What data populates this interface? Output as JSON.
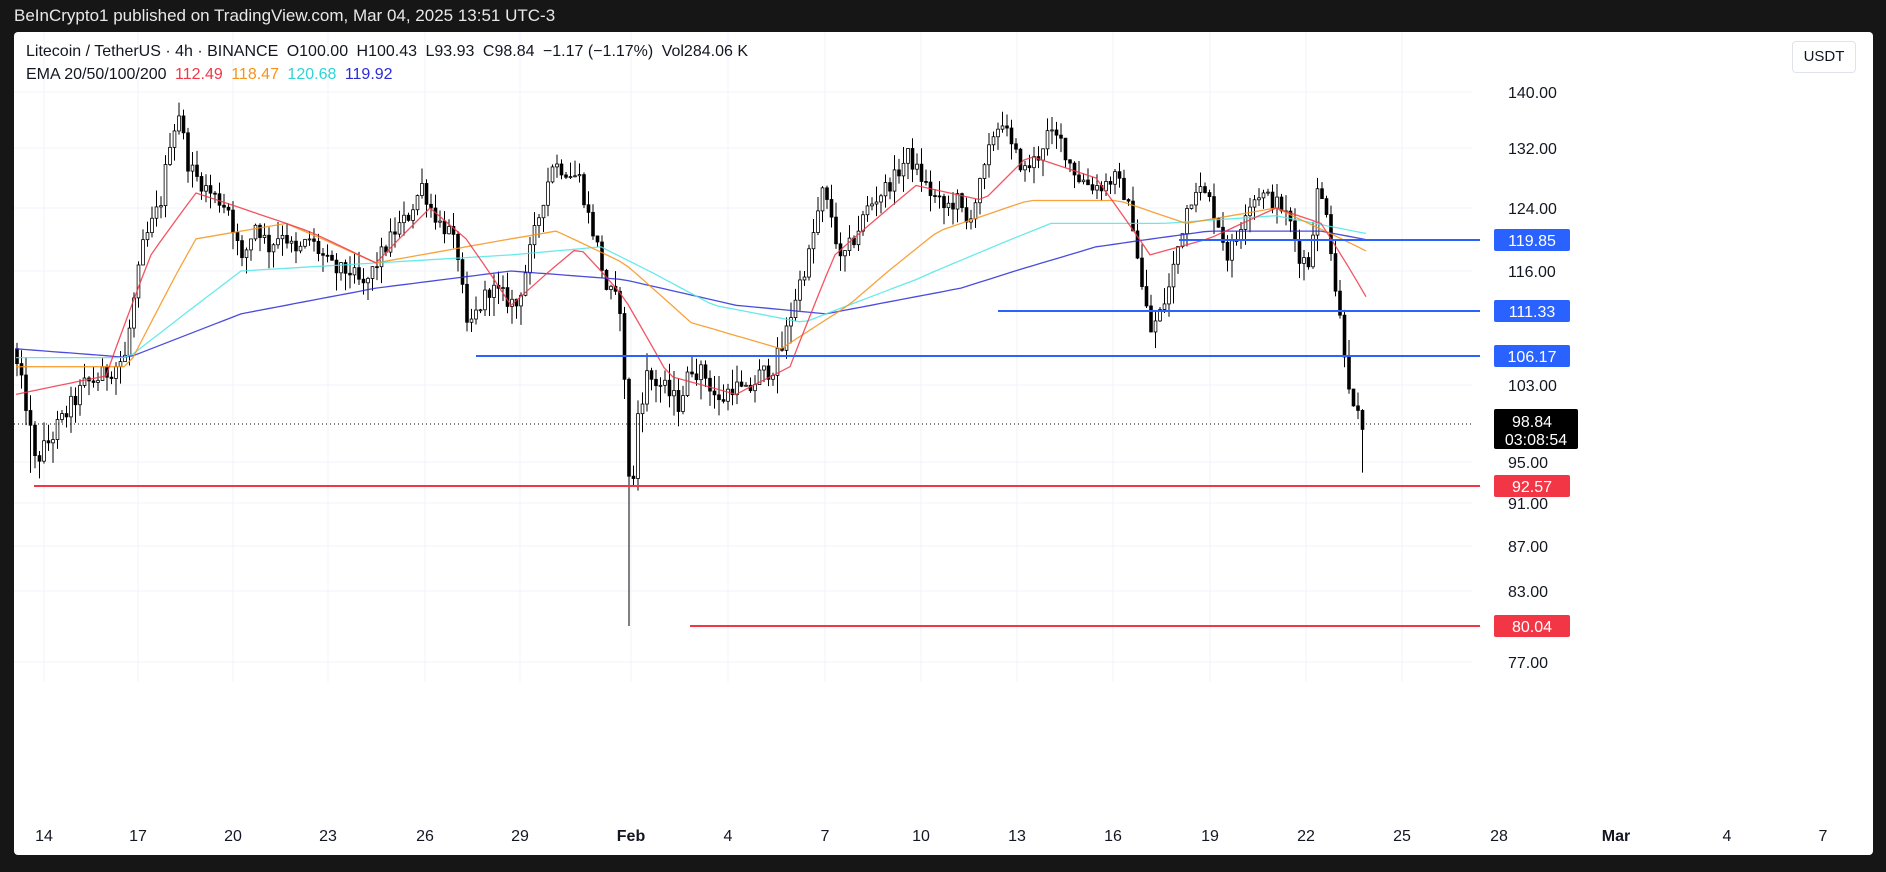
{
  "header": {
    "published": "BeInCrypto1 published on TradingView.com, Mar 04, 2025 13:51 UTC-3"
  },
  "legend": {
    "symbol": "Litecoin / TetherUS · 4h · BINANCE",
    "open": "O100.00",
    "high": "H100.43",
    "low": "L93.93",
    "close": "C98.84",
    "change": "−1.17 (−1.17%)",
    "volume": "Vol284.06 K",
    "ema_label": "EMA 20/50/100/200",
    "ema20": "112.49",
    "ema50": "118.47",
    "ema100": "120.68",
    "ema200": "119.92"
  },
  "currency_button": "USDT",
  "colors": {
    "ema20": "#f23645",
    "ema50": "#f7931a",
    "ema100": "#4ee6e6",
    "ema200": "#2b2bd6",
    "support": "#f23645",
    "resistance": "#2962ff",
    "up": "#ffffff",
    "down": "#000000"
  },
  "chart_data": {
    "type": "candlestick",
    "title": "Litecoin / TetherUS · 4h · BINANCE",
    "xlabel": "",
    "ylabel": "",
    "y_ticks": [
      "140.00",
      "132.00",
      "124.00",
      "116.00",
      "103.00",
      "95.00",
      "91.00",
      "87.00",
      "83.00",
      "77.00"
    ],
    "x_ticks": [
      "14",
      "17",
      "20",
      "23",
      "26",
      "29",
      "Feb",
      "4",
      "7",
      "10",
      "13",
      "16",
      "19",
      "22",
      "25",
      "28",
      "Mar",
      "4",
      "7"
    ],
    "last_price": {
      "value": "98.84",
      "countdown": "03:08:54"
    },
    "horizontal_levels": [
      {
        "value": 119.85,
        "label": "119.85",
        "kind": "resistance"
      },
      {
        "value": 111.33,
        "label": "111.33",
        "kind": "resistance"
      },
      {
        "value": 106.17,
        "label": "106.17",
        "kind": "resistance"
      },
      {
        "value": 92.57,
        "label": "92.57",
        "kind": "support"
      },
      {
        "value": 80.04,
        "label": "80.04",
        "kind": "support"
      }
    ],
    "price_anchors": [
      [
        0,
        107
      ],
      [
        3,
        101
      ],
      [
        5,
        95
      ],
      [
        8,
        97
      ],
      [
        12,
        100
      ],
      [
        16,
        103
      ],
      [
        20,
        104
      ],
      [
        25,
        106
      ],
      [
        29,
        119
      ],
      [
        33,
        125
      ],
      [
        35,
        133
      ],
      [
        37,
        137
      ],
      [
        39,
        130
      ],
      [
        41,
        128
      ],
      [
        44,
        126
      ],
      [
        48,
        124
      ],
      [
        51,
        117
      ],
      [
        54,
        122
      ],
      [
        57,
        119
      ],
      [
        60,
        121
      ],
      [
        63,
        118
      ],
      [
        66,
        120
      ],
      [
        70,
        117
      ],
      [
        72,
        116
      ],
      [
        75,
        116
      ],
      [
        78,
        114
      ],
      [
        81,
        117
      ],
      [
        85,
        121
      ],
      [
        88,
        123
      ],
      [
        91,
        127
      ],
      [
        93,
        124
      ],
      [
        95,
        122
      ],
      [
        97,
        121
      ],
      [
        99,
        118
      ],
      [
        101,
        109
      ],
      [
        103,
        111
      ],
      [
        106,
        114
      ],
      [
        109,
        113
      ],
      [
        112,
        112
      ],
      [
        114,
        116
      ],
      [
        117,
        123
      ],
      [
        120,
        130
      ],
      [
        123,
        129
      ],
      [
        126,
        128
      ],
      [
        128,
        123
      ],
      [
        130,
        119
      ],
      [
        132,
        114
      ],
      [
        135,
        112
      ],
      [
        136,
        103
      ],
      [
        137,
        94
      ],
      [
        138,
        93
      ],
      [
        139,
        100
      ],
      [
        141,
        104
      ],
      [
        144,
        103
      ],
      [
        148,
        101
      ],
      [
        151,
        105
      ],
      [
        154,
        104
      ],
      [
        157,
        101
      ],
      [
        160,
        103
      ],
      [
        163,
        102
      ],
      [
        166,
        104
      ],
      [
        169,
        105
      ],
      [
        171,
        107
      ],
      [
        174,
        113
      ],
      [
        177,
        118
      ],
      [
        180,
        126
      ],
      [
        182,
        123
      ],
      [
        184,
        117
      ],
      [
        187,
        120
      ],
      [
        190,
        124
      ],
      [
        193,
        126
      ],
      [
        196,
        128
      ],
      [
        199,
        131
      ],
      [
        201,
        129
      ],
      [
        204,
        126
      ],
      [
        207,
        124
      ],
      [
        210,
        125
      ],
      [
        212,
        122
      ],
      [
        214,
        125
      ],
      [
        216,
        129
      ],
      [
        218,
        134
      ],
      [
        220,
        136
      ],
      [
        222,
        132
      ],
      [
        225,
        129
      ],
      [
        228,
        131
      ],
      [
        230,
        134
      ],
      [
        233,
        133
      ],
      [
        235,
        130
      ],
      [
        237,
        128
      ],
      [
        240,
        127
      ],
      [
        242,
        127
      ],
      [
        245,
        128
      ],
      [
        247,
        126
      ],
      [
        249,
        122
      ],
      [
        251,
        114
      ],
      [
        253,
        109
      ],
      [
        255,
        111
      ],
      [
        257,
        114
      ],
      [
        259,
        119
      ],
      [
        261,
        124
      ],
      [
        263,
        127
      ],
      [
        266,
        125
      ],
      [
        268,
        122
      ],
      [
        270,
        118
      ],
      [
        272,
        120
      ],
      [
        274,
        124
      ],
      [
        277,
        126
      ],
      [
        280,
        125
      ],
      [
        282,
        124
      ],
      [
        284,
        122
      ],
      [
        286,
        118
      ],
      [
        288,
        117
      ],
      [
        290,
        126
      ],
      [
        292,
        124
      ],
      [
        294,
        114
      ],
      [
        296,
        107
      ],
      [
        298,
        100
      ],
      [
        300,
        98.84
      ]
    ],
    "ema20_ref": [
      [
        0,
        102
      ],
      [
        20,
        104
      ],
      [
        30,
        118
      ],
      [
        40,
        126
      ],
      [
        55,
        123
      ],
      [
        65,
        121
      ],
      [
        80,
        117
      ],
      [
        92,
        124
      ],
      [
        100,
        120
      ],
      [
        110,
        112
      ],
      [
        125,
        119
      ],
      [
        135,
        113
      ],
      [
        145,
        104
      ],
      [
        160,
        102
      ],
      [
        172,
        105
      ],
      [
        182,
        118
      ],
      [
        200,
        127
      ],
      [
        215,
        125
      ],
      [
        225,
        131
      ],
      [
        240,
        128
      ],
      [
        252,
        118
      ],
      [
        265,
        120
      ],
      [
        280,
        124
      ],
      [
        290,
        122
      ],
      [
        300,
        113
      ]
    ],
    "ema50_ref": [
      [
        0,
        105
      ],
      [
        25,
        105
      ],
      [
        40,
        120
      ],
      [
        60,
        122
      ],
      [
        80,
        117
      ],
      [
        100,
        119
      ],
      [
        120,
        121
      ],
      [
        135,
        117
      ],
      [
        150,
        110
      ],
      [
        170,
        107
      ],
      [
        185,
        112
      ],
      [
        205,
        121
      ],
      [
        225,
        125
      ],
      [
        245,
        125
      ],
      [
        260,
        122
      ],
      [
        280,
        124
      ],
      [
        300,
        118.5
      ]
    ],
    "ema100_ref": [
      [
        0,
        106
      ],
      [
        25,
        106
      ],
      [
        50,
        116
      ],
      [
        80,
        117
      ],
      [
        110,
        118
      ],
      [
        130,
        119
      ],
      [
        155,
        112
      ],
      [
        175,
        110
      ],
      [
        200,
        115
      ],
      [
        230,
        122
      ],
      [
        255,
        122
      ],
      [
        280,
        123
      ],
      [
        300,
        120.7
      ]
    ],
    "ema200_ref": [
      [
        0,
        107
      ],
      [
        25,
        106
      ],
      [
        50,
        111
      ],
      [
        80,
        114
      ],
      [
        110,
        116
      ],
      [
        135,
        115
      ],
      [
        160,
        112
      ],
      [
        180,
        111
      ],
      [
        210,
        114
      ],
      [
        240,
        119
      ],
      [
        265,
        121
      ],
      [
        290,
        121
      ],
      [
        300,
        119.9
      ]
    ],
    "n_bars": 300
  }
}
